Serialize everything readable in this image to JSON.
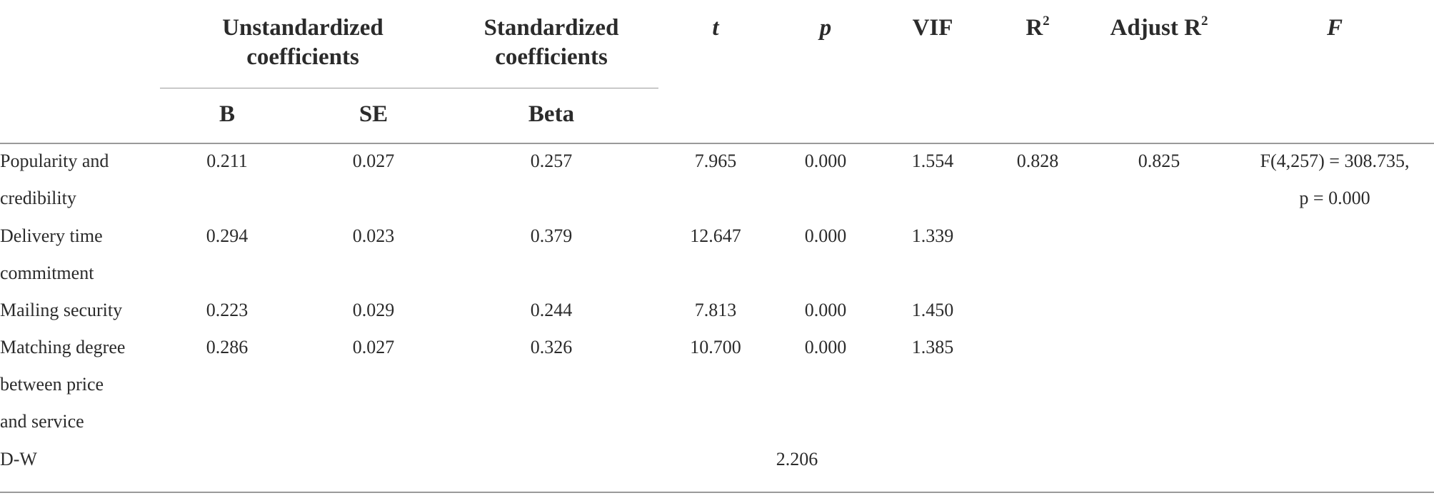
{
  "table": {
    "header": {
      "group_unstd": [
        "Unstandardized",
        "coefficients"
      ],
      "group_std": [
        "Standardized",
        "coefficients"
      ],
      "t": "t",
      "p": "p",
      "vif": "VIF",
      "r2_base": "R",
      "r2_sup": "2",
      "adj_r2_base": "Adjust R",
      "adj_r2_sup": "2",
      "f": "F",
      "b": "B",
      "se": "SE",
      "beta": "Beta"
    },
    "rows": [
      {
        "label_lines": [
          "Popularity and",
          "credibility"
        ],
        "b": "0.211",
        "se": "0.027",
        "beta": "0.257",
        "t": "7.965",
        "p": "0.000",
        "vif": "1.554",
        "r2": "0.828",
        "adj_r2": "0.825",
        "f_lines": [
          "F(4,257) = 308.735,",
          "p = 0.000"
        ]
      },
      {
        "label_lines": [
          "Delivery time",
          "commitment"
        ],
        "b": "0.294",
        "se": "0.023",
        "beta": "0.379",
        "t": "12.647",
        "p": "0.000",
        "vif": "1.339"
      },
      {
        "label_lines": [
          "Mailing security"
        ],
        "b": "0.223",
        "se": "0.029",
        "beta": "0.244",
        "t": "7.813",
        "p": "0.000",
        "vif": "1.450"
      },
      {
        "label_lines": [
          "Matching degree",
          "between price",
          "and service"
        ],
        "b": "0.286",
        "se": "0.027",
        "beta": "0.326",
        "t": "10.700",
        "p": "0.000",
        "vif": "1.385"
      }
    ],
    "dw": {
      "label": "D-W",
      "value": "2.206"
    }
  }
}
